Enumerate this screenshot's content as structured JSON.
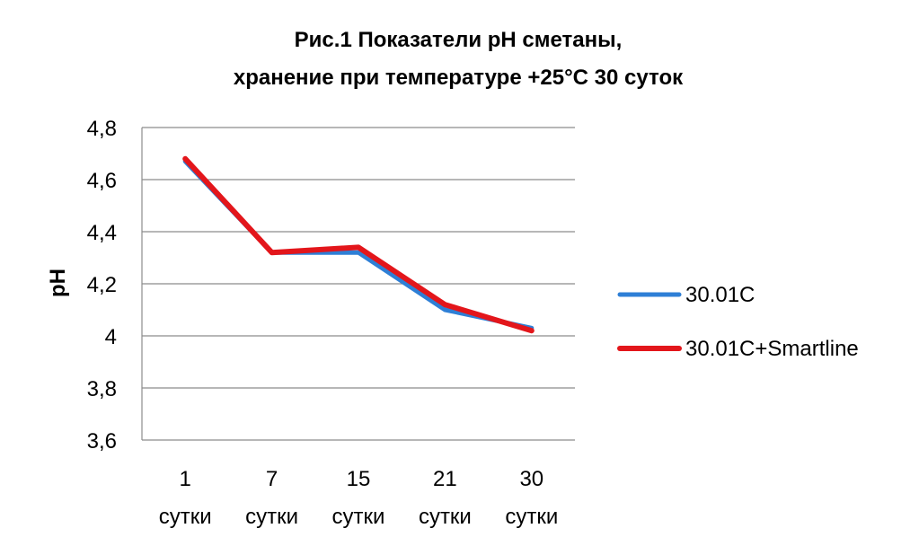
{
  "chart_data": {
    "type": "line",
    "title_lines": [
      "Рис.1 Показатели рН сметаны,",
      "хранение при температуре +25°С 30 суток"
    ],
    "xlabel": "",
    "ylabel": "pH",
    "categories": [
      {
        "top": "1",
        "bottom": "сутки"
      },
      {
        "top": "7",
        "bottom": "сутки"
      },
      {
        "top": "15",
        "bottom": "сутки"
      },
      {
        "top": "21",
        "bottom": "сутки"
      },
      {
        "top": "30",
        "bottom": "сутки"
      }
    ],
    "ylim": [
      3.6,
      4.8
    ],
    "yticks": [
      {
        "value": 3.6,
        "label": "3,6"
      },
      {
        "value": 3.8,
        "label": "3,8"
      },
      {
        "value": 4.0,
        "label": "4"
      },
      {
        "value": 4.2,
        "label": "4,2"
      },
      {
        "value": 4.4,
        "label": "4,4"
      },
      {
        "value": 4.6,
        "label": "4,6"
      },
      {
        "value": 4.8,
        "label": "4,8"
      }
    ],
    "grid": true,
    "legend_position": "right",
    "series": [
      {
        "name": "30.01С",
        "color": "#2e7fd6",
        "values": [
          4.67,
          4.32,
          4.32,
          4.1,
          4.03
        ]
      },
      {
        "name": "30.01С+Smartline",
        "color": "#e3161b",
        "values": [
          4.68,
          4.32,
          4.34,
          4.12,
          4.02
        ]
      }
    ]
  }
}
